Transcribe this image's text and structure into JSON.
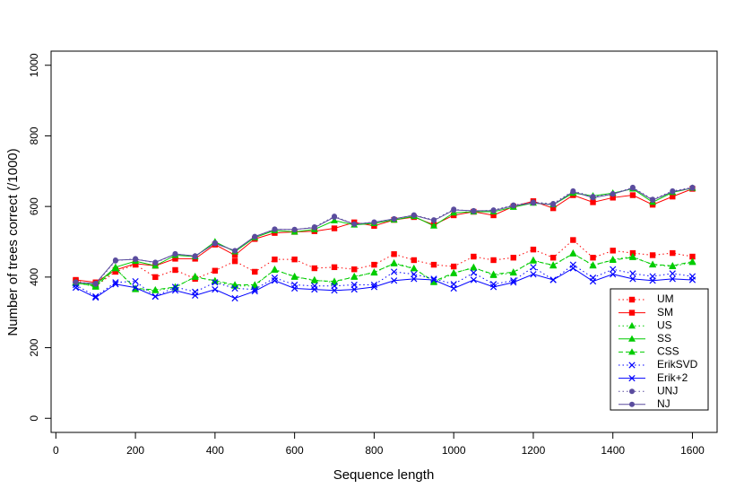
{
  "chart_data": {
    "type": "line",
    "x_label": "Sequence length",
    "y_label": "Number of trees correct (/1000)",
    "x": [
      50,
      100,
      150,
      200,
      250,
      300,
      350,
      400,
      450,
      500,
      550,
      600,
      650,
      700,
      750,
      800,
      850,
      900,
      950,
      1000,
      1050,
      1100,
      1150,
      1200,
      1250,
      1300,
      1350,
      1400,
      1450,
      1500,
      1550,
      1600
    ],
    "xlim": [
      -12,
      1662
    ],
    "xticks": [
      0,
      200,
      400,
      600,
      800,
      1000,
      1200,
      1400,
      1600
    ],
    "ylim": [
      -40,
      1040
    ],
    "yticks": [
      0,
      200,
      400,
      600,
      800,
      1000
    ],
    "grid": false,
    "legend": "bottom-right",
    "series": [
      {
        "name": "UM",
        "color": "#ff0000",
        "marker": "square",
        "dash": "dotted",
        "values": [
          390,
          375,
          415,
          435,
          400,
          420,
          395,
          418,
          445,
          415,
          450,
          450,
          425,
          428,
          422,
          435,
          465,
          448,
          435,
          430,
          458,
          448,
          455,
          478,
          455,
          505,
          455,
          475,
          468,
          462,
          468,
          458
        ]
      },
      {
        "name": "SM",
        "color": "#ff0000",
        "marker": "square",
        "dash": "solid",
        "values": [
          392,
          385,
          420,
          438,
          432,
          452,
          452,
          492,
          462,
          508,
          525,
          528,
          530,
          538,
          555,
          545,
          562,
          570,
          548,
          575,
          585,
          575,
          600,
          615,
          595,
          632,
          612,
          625,
          632,
          605,
          628,
          650
        ]
      },
      {
        "name": "US",
        "color": "#00cc00",
        "marker": "triangle",
        "dash": "dotted",
        "values": [
          385,
          372,
          425,
          365,
          362,
          370,
          402,
          388,
          375,
          375,
          422,
          400,
          392,
          385,
          402,
          412,
          440,
          425,
          385,
          410,
          428,
          405,
          412,
          448,
          432,
          468,
          432,
          450,
          458,
          435,
          430,
          442
        ]
      },
      {
        "name": "SS",
        "color": "#00cc00",
        "marker": "triangle",
        "dash": "solid",
        "values": [
          382,
          378,
          428,
          445,
          432,
          462,
          458,
          500,
          472,
          512,
          532,
          528,
          535,
          560,
          548,
          552,
          562,
          572,
          545,
          582,
          585,
          585,
          598,
          610,
          605,
          638,
          630,
          638,
          650,
          612,
          640,
          652
        ]
      },
      {
        "name": "CSS",
        "color": "#00cc00",
        "marker": "triangle",
        "dash": "dashed",
        "values": [
          384,
          374,
          424,
          368,
          364,
          372,
          400,
          390,
          378,
          378,
          420,
          402,
          390,
          388,
          400,
          414,
          438,
          424,
          388,
          412,
          426,
          408,
          414,
          446,
          434,
          466,
          434,
          448,
          456,
          436,
          432,
          444
        ]
      },
      {
        "name": "ErikSVD",
        "color": "#0000ff",
        "marker": "cross",
        "dash": "dotted",
        "values": [
          378,
          345,
          385,
          388,
          345,
          372,
          358,
          385,
          368,
          365,
          398,
          378,
          375,
          375,
          378,
          378,
          415,
          408,
          395,
          380,
          412,
          380,
          390,
          428,
          392,
          435,
          398,
          422,
          410,
          402,
          410,
          402
        ]
      },
      {
        "name": "Erik+2",
        "color": "#0000ff",
        "marker": "cross",
        "dash": "solid",
        "values": [
          370,
          342,
          380,
          370,
          345,
          362,
          348,
          365,
          340,
          360,
          390,
          368,
          365,
          362,
          365,
          372,
          390,
          395,
          392,
          368,
          392,
          372,
          385,
          408,
          392,
          425,
          388,
          408,
          395,
          390,
          395,
          392
        ]
      },
      {
        "name": "UNJ",
        "color": "#5a4c9e",
        "marker": "circle",
        "dash": "dotted",
        "values": [
          386,
          380,
          446,
          452,
          440,
          466,
          458,
          497,
          474,
          514,
          536,
          534,
          542,
          572,
          550,
          556,
          564,
          576,
          562,
          592,
          586,
          590,
          604,
          612,
          608,
          644,
          628,
          636,
          654,
          620,
          644,
          654
        ]
      },
      {
        "name": "NJ",
        "color": "#5a4c9e",
        "marker": "circle",
        "dash": "solid",
        "values": [
          385,
          382,
          448,
          450,
          442,
          465,
          460,
          495,
          475,
          515,
          535,
          535,
          540,
          570,
          550,
          555,
          565,
          575,
          560,
          590,
          588,
          588,
          602,
          610,
          605,
          642,
          625,
          635,
          652,
          618,
          642,
          652
        ]
      }
    ]
  }
}
